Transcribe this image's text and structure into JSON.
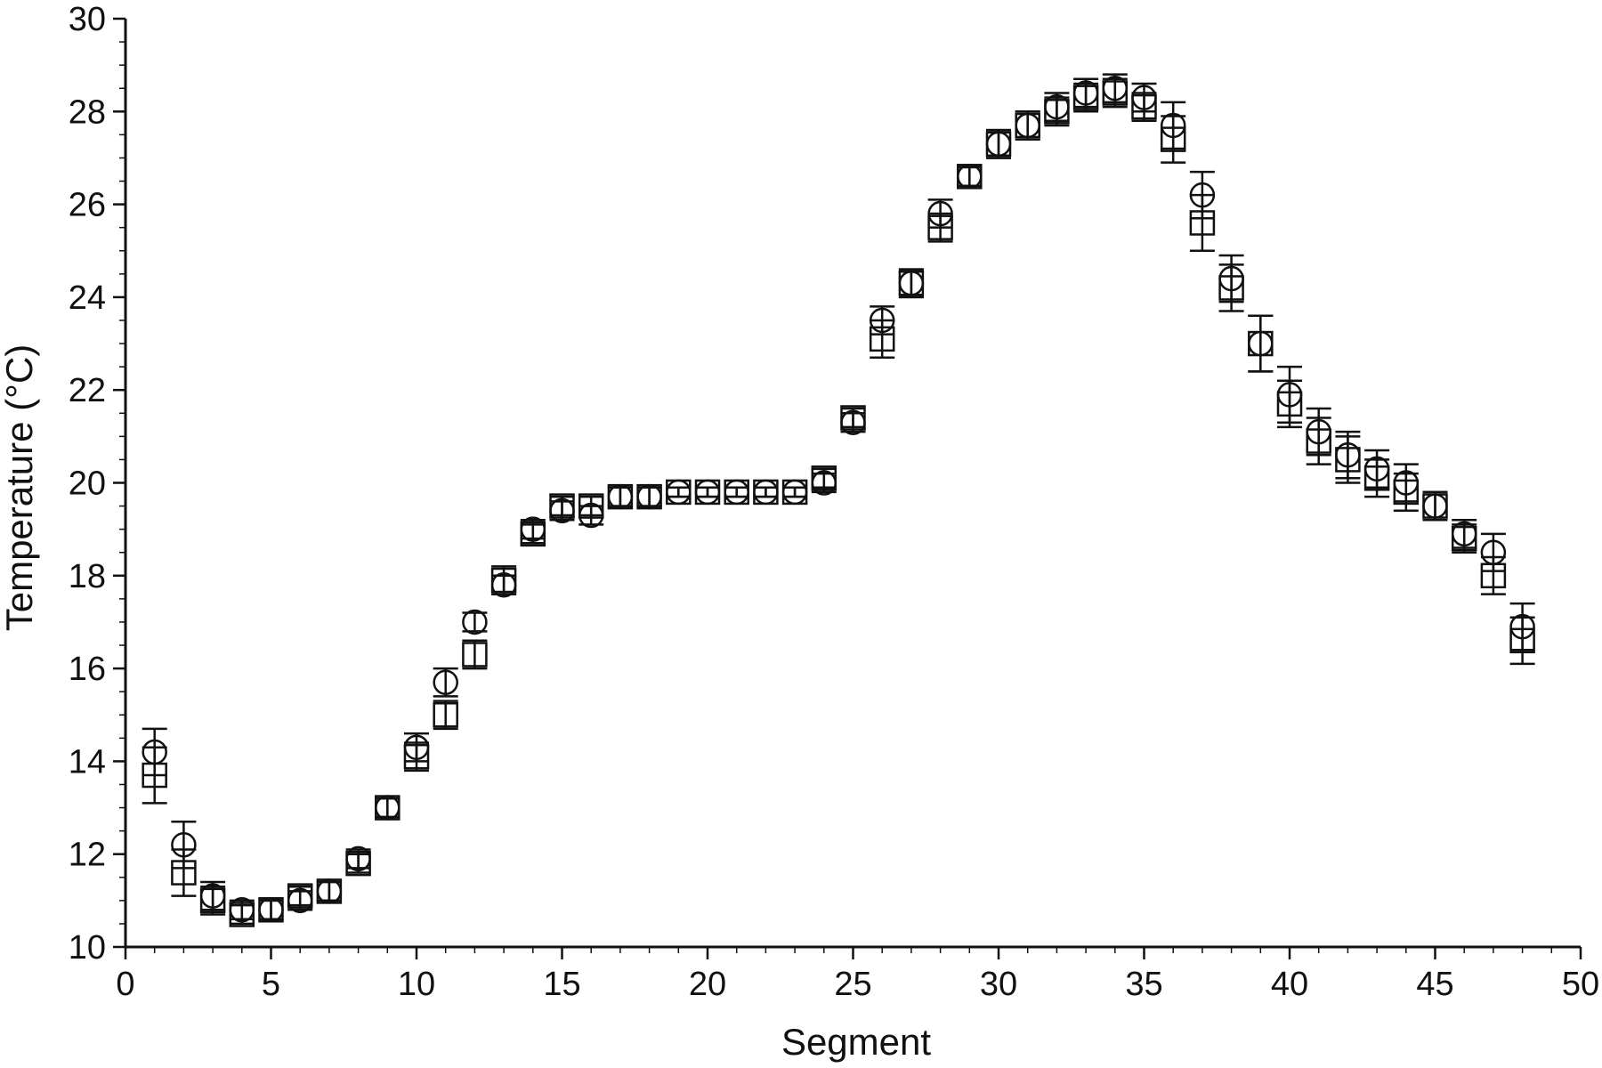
{
  "chart_data": {
    "type": "scatter",
    "title": "",
    "xlabel": "Segment",
    "ylabel": "Temperature (°C)",
    "xlim": [
      0,
      50
    ],
    "ylim": [
      10,
      30
    ],
    "x_ticks": [
      0,
      5,
      10,
      15,
      20,
      25,
      30,
      35,
      40,
      45,
      50
    ],
    "x_tick_labels": [
      "0",
      "5",
      "10",
      "15",
      "20",
      "25",
      "30",
      "35",
      "40",
      "45",
      "50"
    ],
    "y_ticks": [
      10,
      12,
      14,
      16,
      18,
      20,
      22,
      24,
      26,
      28,
      30
    ],
    "y_tick_labels": [
      "10",
      "12",
      "14",
      "16",
      "18",
      "20",
      "22",
      "24",
      "26",
      "28",
      "30"
    ],
    "grid": false,
    "legend": "none",
    "colors": {
      "ink": "#111111",
      "background": "#ffffff"
    },
    "series": [
      {
        "marker": "circle",
        "x": [
          1,
          2,
          3,
          4,
          5,
          6,
          7,
          8,
          9,
          10,
          11,
          12,
          13,
          14,
          15,
          16,
          17,
          18,
          19,
          20,
          21,
          22,
          23,
          24,
          25,
          26,
          27,
          28,
          29,
          30,
          31,
          32,
          33,
          34,
          35,
          36,
          37,
          38,
          39,
          40,
          41,
          42,
          43,
          44,
          45,
          46,
          47,
          48
        ],
        "y": [
          14.2,
          12.2,
          11.1,
          10.8,
          10.8,
          11.0,
          11.2,
          11.9,
          13.0,
          14.3,
          15.7,
          17.0,
          17.8,
          19.0,
          19.4,
          19.3,
          19.7,
          19.7,
          19.8,
          19.8,
          19.8,
          19.8,
          19.8,
          20.0,
          21.3,
          23.5,
          24.3,
          25.8,
          26.6,
          27.3,
          27.7,
          28.1,
          28.4,
          28.5,
          28.3,
          27.7,
          26.2,
          24.4,
          23.0,
          21.9,
          21.1,
          20.6,
          20.3,
          20.0,
          19.5,
          18.9,
          18.5,
          16.9
        ],
        "err": [
          0.5,
          0.5,
          0.3,
          0.2,
          0.2,
          0.2,
          0.2,
          0.2,
          0.2,
          0.3,
          0.3,
          0.2,
          0.2,
          0.2,
          0.2,
          0.2,
          0.2,
          0.2,
          0.1,
          0.1,
          0.1,
          0.1,
          0.1,
          0.2,
          0.2,
          0.3,
          0.3,
          0.3,
          0.2,
          0.3,
          0.3,
          0.3,
          0.3,
          0.3,
          0.3,
          0.5,
          0.5,
          0.5,
          0.6,
          0.6,
          0.5,
          0.5,
          0.4,
          0.4,
          0.3,
          0.3,
          0.4,
          0.5
        ]
      },
      {
        "marker": "square",
        "x": [
          1,
          2,
          3,
          4,
          5,
          6,
          7,
          8,
          9,
          10,
          11,
          12,
          13,
          14,
          15,
          16,
          17,
          18,
          19,
          20,
          21,
          22,
          23,
          24,
          25,
          26,
          27,
          28,
          29,
          30,
          31,
          32,
          33,
          34,
          35,
          36,
          37,
          38,
          39,
          40,
          41,
          42,
          43,
          44,
          45,
          46,
          47,
          48
        ],
        "y": [
          13.7,
          11.6,
          11.0,
          10.7,
          10.8,
          11.1,
          11.2,
          11.8,
          13.0,
          14.1,
          15.0,
          16.3,
          17.9,
          18.9,
          19.5,
          19.5,
          19.7,
          19.7,
          19.8,
          19.8,
          19.8,
          19.8,
          19.8,
          20.1,
          21.4,
          23.1,
          24.3,
          25.5,
          26.6,
          27.3,
          27.7,
          28.0,
          28.3,
          28.4,
          28.1,
          27.4,
          25.6,
          24.2,
          23.0,
          21.7,
          20.9,
          20.5,
          20.1,
          19.8,
          19.5,
          18.8,
          18.0,
          16.6
        ],
        "err": [
          0.6,
          0.5,
          0.3,
          0.2,
          0.2,
          0.2,
          0.2,
          0.2,
          0.2,
          0.3,
          0.3,
          0.3,
          0.3,
          0.2,
          0.2,
          0.2,
          0.2,
          0.2,
          0.1,
          0.1,
          0.1,
          0.1,
          0.1,
          0.2,
          0.2,
          0.4,
          0.3,
          0.3,
          0.2,
          0.3,
          0.3,
          0.3,
          0.3,
          0.3,
          0.3,
          0.5,
          0.6,
          0.5,
          0.6,
          0.5,
          0.5,
          0.5,
          0.4,
          0.4,
          0.3,
          0.3,
          0.4,
          0.5
        ]
      }
    ]
  }
}
